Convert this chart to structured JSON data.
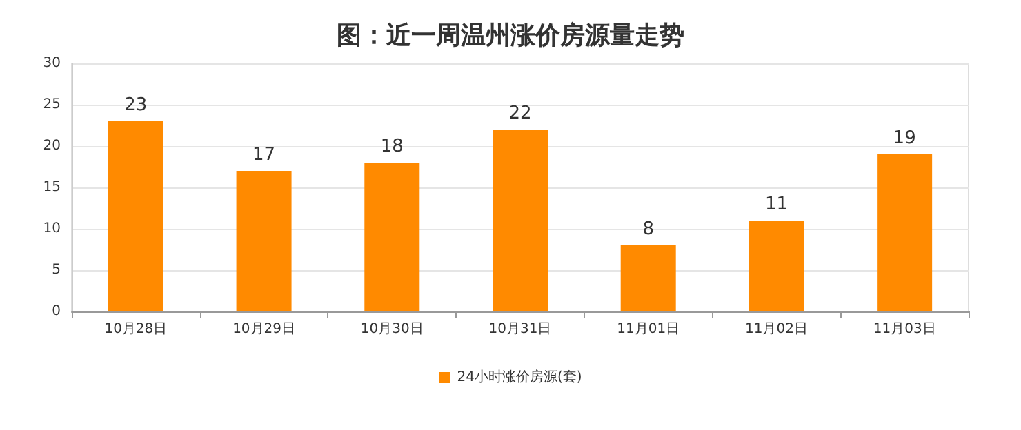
{
  "chart_data": {
    "type": "bar",
    "title": "图：近一周温州涨价房源量走势",
    "categories": [
      "10月28日",
      "10月29日",
      "10月30日",
      "10月31日",
      "11月01日",
      "11月02日",
      "11月03日"
    ],
    "series": [
      {
        "name": "24小时涨价房源(套)",
        "color": "#ff8a00",
        "values": [
          23,
          17,
          18,
          22,
          8,
          11,
          19
        ]
      }
    ],
    "ylim": [
      0,
      30
    ],
    "yticks": [
      0,
      5,
      10,
      15,
      20,
      25,
      30
    ],
    "grid": "y",
    "legend": "bottom",
    "data_labels": true
  }
}
